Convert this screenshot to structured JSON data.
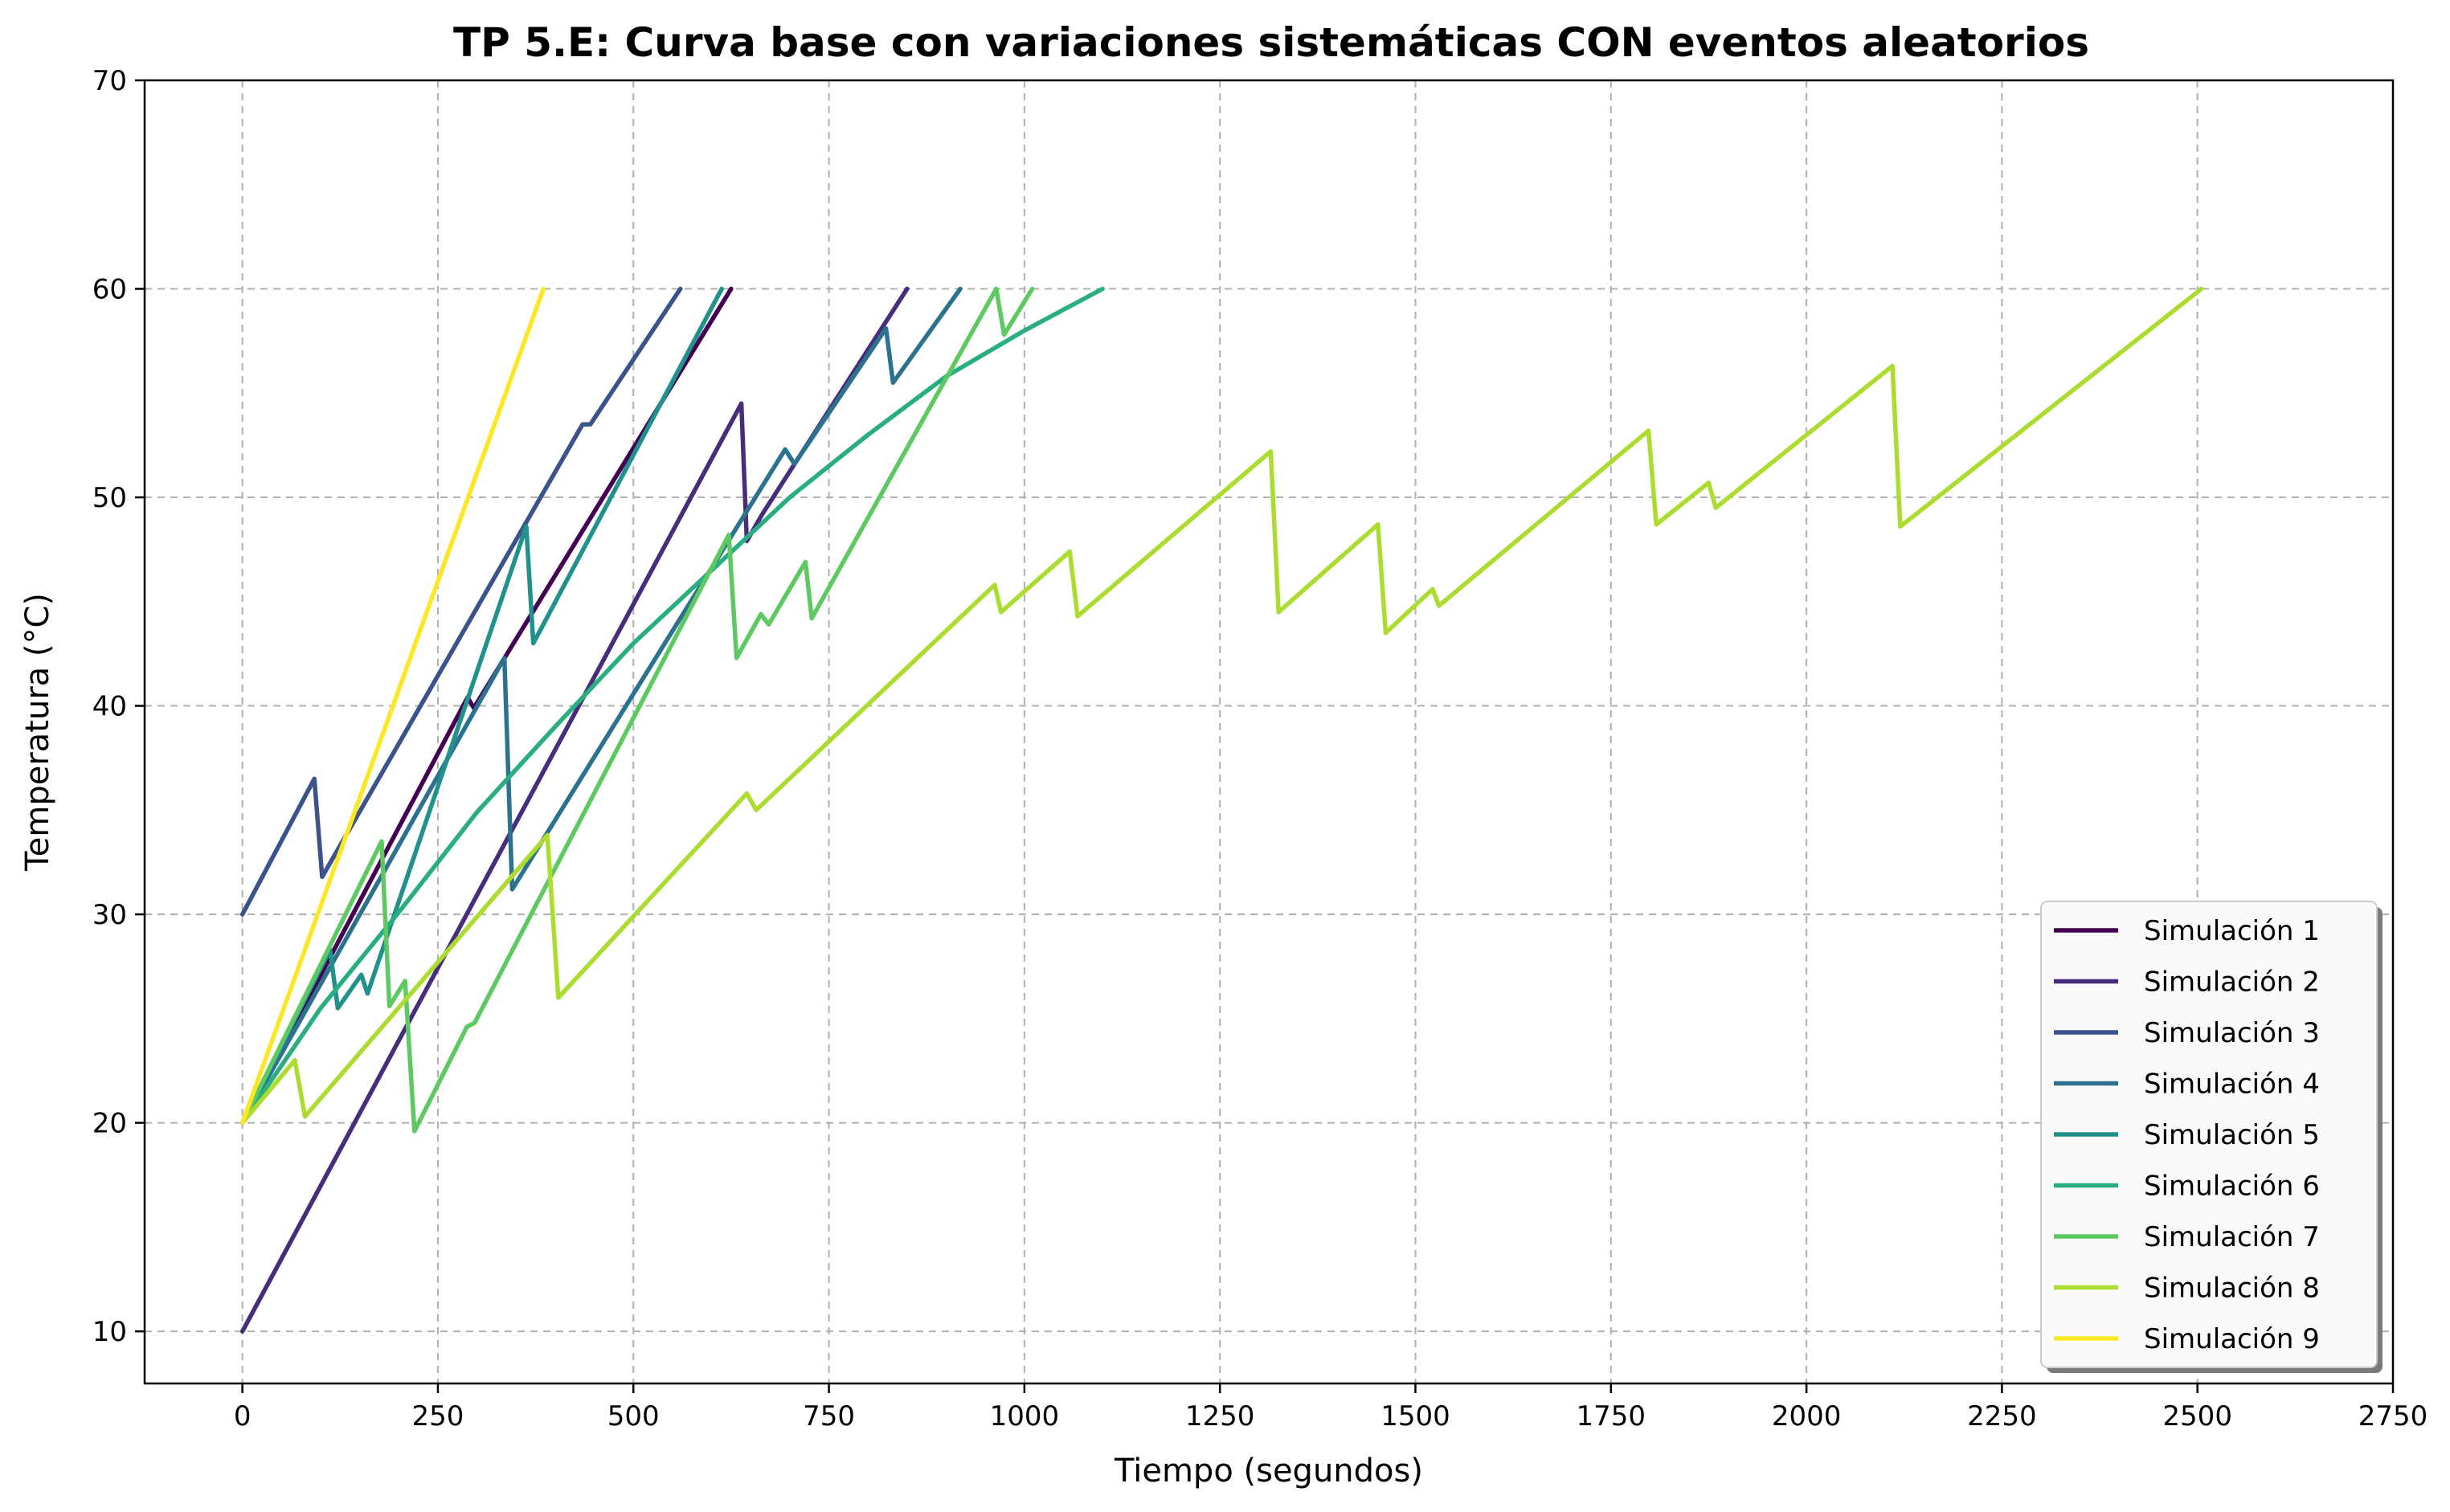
{
  "chart_data": {
    "type": "line",
    "title": "TP 5.E: Curva base con variaciones sistemáticas CON eventos aleatorios",
    "xlabel": "Tiempo (segundos)",
    "ylabel": "Temperatura (°C)",
    "xlim": [
      -125,
      2750
    ],
    "ylim": [
      7.5,
      70
    ],
    "x_ticks": [
      0,
      250,
      500,
      750,
      1000,
      1250,
      1500,
      1750,
      2000,
      2250,
      2500,
      2750
    ],
    "y_ticks": [
      10,
      20,
      30,
      40,
      50,
      60,
      70
    ],
    "grid": true,
    "legend_position": "bottom-right",
    "series": [
      {
        "name": "Simulación 1",
        "color": "#440154",
        "points": [
          [
            0,
            20
          ],
          [
            288,
            40.4
          ],
          [
            296,
            39.9
          ],
          [
            625,
            60
          ]
        ]
      },
      {
        "name": "Simulación 2",
        "color": "#472d7b",
        "points": [
          [
            0,
            10
          ],
          [
            638,
            54.5
          ],
          [
            645,
            47.9
          ],
          [
            665,
            49.2
          ],
          [
            850,
            60
          ]
        ]
      },
      {
        "name": "Simulación 3",
        "color": "#3b528b",
        "points": [
          [
            0,
            30
          ],
          [
            92,
            36.5
          ],
          [
            102,
            31.8
          ],
          [
            435,
            53.5
          ],
          [
            445,
            53.5
          ],
          [
            560,
            60
          ]
        ]
      },
      {
        "name": "Simulación 4",
        "color": "#2c728e",
        "points": [
          [
            0,
            20
          ],
          [
            335,
            42.3
          ],
          [
            345,
            31.2
          ],
          [
            694,
            52.3
          ],
          [
            706,
            51.6
          ],
          [
            823,
            58.1
          ],
          [
            832,
            55.5
          ],
          [
            918,
            60
          ]
        ]
      },
      {
        "name": "Simulación 5",
        "color": "#21918c",
        "points": [
          [
            0,
            20
          ],
          [
            112,
            28.3
          ],
          [
            122,
            25.5
          ],
          [
            152,
            27.1
          ],
          [
            160,
            26.2
          ],
          [
            363,
            48.6
          ],
          [
            372,
            43
          ],
          [
            613,
            60
          ]
        ]
      },
      {
        "name": "Simulación 6",
        "color": "#28ae80",
        "points": [
          [
            0,
            20
          ],
          [
            100,
            25.5
          ],
          [
            200,
            30.1
          ],
          [
            300,
            34.9
          ],
          [
            400,
            39
          ],
          [
            500,
            43
          ],
          [
            600,
            46.5
          ],
          [
            700,
            50
          ],
          [
            800,
            53
          ],
          [
            900,
            55.8
          ],
          [
            1000,
            58
          ],
          [
            1100,
            60
          ]
        ]
      },
      {
        "name": "Simulación 7",
        "color": "#5ec962",
        "points": [
          [
            0,
            20
          ],
          [
            178,
            33.5
          ],
          [
            188,
            25.6
          ],
          [
            208,
            26.8
          ],
          [
            220,
            19.6
          ],
          [
            287,
            24.6
          ],
          [
            297,
            24.8
          ],
          [
            622,
            48.2
          ],
          [
            632,
            42.3
          ],
          [
            663,
            44.4
          ],
          [
            673,
            43.9
          ],
          [
            720,
            46.9
          ],
          [
            728,
            44.2
          ],
          [
            964,
            60
          ],
          [
            974,
            57.8
          ],
          [
            1010,
            60
          ]
        ]
      },
      {
        "name": "Simulación 8",
        "color": "#addc30",
        "points": [
          [
            0,
            20
          ],
          [
            67,
            23
          ],
          [
            80,
            20.3
          ],
          [
            390,
            33.8
          ],
          [
            404,
            26
          ],
          [
            645,
            35.8
          ],
          [
            657,
            35
          ],
          [
            962,
            45.8
          ],
          [
            970,
            44.5
          ],
          [
            1058,
            47.4
          ],
          [
            1068,
            44.3
          ],
          [
            1315,
            52.2
          ],
          [
            1325,
            44.5
          ],
          [
            1452,
            48.7
          ],
          [
            1462,
            43.5
          ],
          [
            1522,
            45.6
          ],
          [
            1530,
            44.8
          ],
          [
            1798,
            53.2
          ],
          [
            1808,
            48.7
          ],
          [
            1875,
            50.7
          ],
          [
            1884,
            49.5
          ],
          [
            2110,
            56.3
          ],
          [
            2120,
            48.6
          ],
          [
            2505,
            60
          ]
        ]
      },
      {
        "name": "Simulación 9",
        "color": "#fde725",
        "points": [
          [
            0,
            20
          ],
          [
            385,
            60
          ]
        ]
      }
    ]
  }
}
